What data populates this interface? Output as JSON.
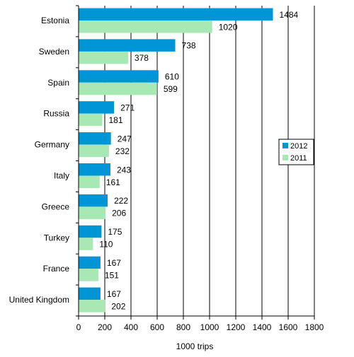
{
  "chart_data": {
    "type": "bar",
    "orientation": "horizontal",
    "categories": [
      "Estonia",
      "Sweden",
      "Spain",
      "Russia",
      "Germany",
      "Italy",
      "Greece",
      "Turkey",
      "France",
      "United Kingdom"
    ],
    "series": [
      {
        "name": "2012",
        "color": "#0096d6",
        "values": [
          1484,
          738,
          610,
          271,
          247,
          243,
          222,
          175,
          167,
          167
        ]
      },
      {
        "name": "2011",
        "color": "#a8e8b4",
        "values": [
          1020,
          378,
          599,
          181,
          232,
          161,
          206,
          110,
          151,
          202
        ]
      }
    ],
    "xlabel": "1000 trips",
    "xlim": [
      0,
      1800
    ],
    "xticks": [
      0,
      200,
      400,
      600,
      800,
      1000,
      1200,
      1400,
      1600,
      1800
    ],
    "grid": "vertical",
    "legend": "right"
  }
}
